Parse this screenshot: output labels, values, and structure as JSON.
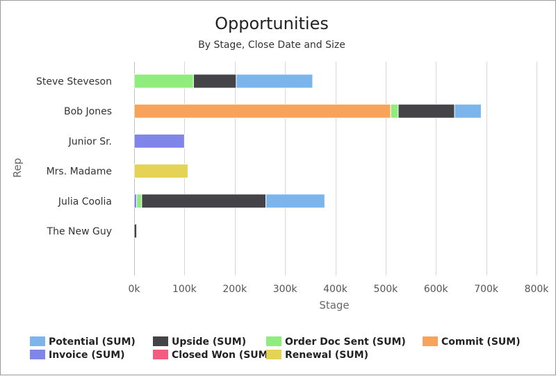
{
  "chart_data": {
    "type": "bar",
    "orientation": "horizontal",
    "stacked": true,
    "title": "Opportunities",
    "subtitle": "By Stage, Close Date and Size",
    "xlabel": "Stage",
    "ylabel": "Rep",
    "xlim": [
      0,
      800000
    ],
    "x_ticks": [
      0,
      100000,
      200000,
      300000,
      400000,
      500000,
      600000,
      700000,
      800000
    ],
    "x_tick_labels": [
      "0k",
      "100k",
      "200k",
      "300k",
      "400k",
      "500k",
      "600k",
      "700k",
      "800k"
    ],
    "grid": true,
    "legend_position": "bottom",
    "categories": [
      "Steve Steveson",
      "Bob Jones",
      "Junior Sr.",
      "Mrs. Madame",
      "Julia Coolia",
      "The New Guy"
    ],
    "series": [
      {
        "name": "Invoice (SUM)",
        "color": "#8085e9",
        "values": [
          0,
          0,
          100000,
          0,
          5000,
          0
        ]
      },
      {
        "name": "Renewal (SUM)",
        "color": "#e4d354",
        "values": [
          0,
          0,
          0,
          107000,
          0,
          0
        ]
      },
      {
        "name": "Commit (SUM)",
        "color": "#f7a35c",
        "values": [
          0,
          510000,
          0,
          0,
          0,
          0
        ]
      },
      {
        "name": "Order Doc Sent (SUM)",
        "color": "#90ed7d",
        "values": [
          118000,
          15000,
          0,
          0,
          10000,
          0
        ]
      },
      {
        "name": "Upside (SUM)",
        "color": "#434348",
        "values": [
          85000,
          112000,
          0,
          0,
          247000,
          5000
        ]
      },
      {
        "name": "Potential (SUM)",
        "color": "#7cb5ec",
        "values": [
          152000,
          53000,
          0,
          0,
          117000,
          0
        ]
      },
      {
        "name": "Closed Won (SUM)",
        "color": "#f15c80",
        "values": [
          0,
          0,
          0,
          0,
          0,
          0
        ]
      }
    ],
    "legend_order": [
      "Potential (SUM)",
      "Upside (SUM)",
      "Order Doc Sent (SUM)",
      "Commit (SUM)",
      "Invoice (SUM)",
      "Closed Won (SUM)",
      "Renewal (SUM)"
    ]
  }
}
